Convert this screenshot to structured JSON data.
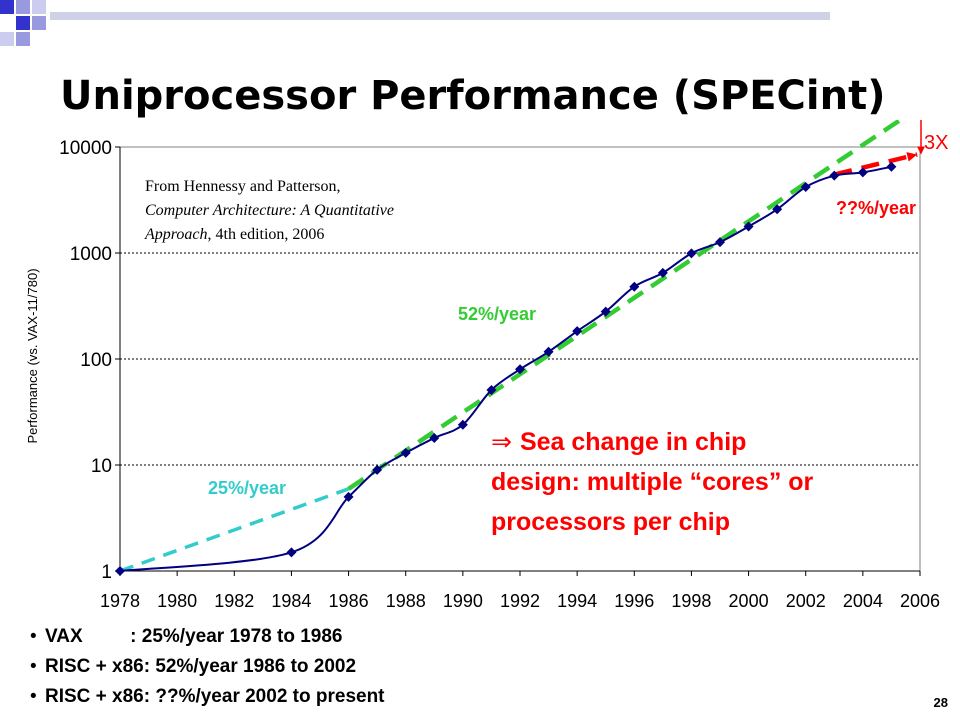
{
  "slide": {
    "title": "Uniprocessor Performance (SPECint)",
    "page_number": "28",
    "bullets": [
      "VAX         : 25%/year 1978 to 1986",
      "RISC + x86: 52%/year 1986 to 2002",
      "RISC + x86: ??%/year 2002 to present"
    ]
  },
  "colors": {
    "series": "#000080",
    "marker": "#000080",
    "trend_vax": "#33CCCC",
    "trend_risc": "#33CC33",
    "trend_recent": "#FF0000",
    "annotation_red": "#FF0000",
    "trend_label_green": "#33CC33",
    "trend_label_cyan": "#33CCCC",
    "title_squares": [
      "#3333CC",
      "#9999DD",
      "#CCCCEE"
    ]
  },
  "chart_data": {
    "type": "line",
    "title": "",
    "xlabel": "",
    "ylabel": "Performance (vs. VAX-11/780)",
    "y_scale": "log",
    "xlim": [
      1978,
      2006
    ],
    "ylim": [
      1,
      10000
    ],
    "x_ticks": [
      "1978",
      "1980",
      "1982",
      "1984",
      "1986",
      "1988",
      "1990",
      "1992",
      "1994",
      "1996",
      "1998",
      "2000",
      "2002",
      "2004",
      "2006"
    ],
    "y_ticks": [
      "1",
      "10",
      "100",
      "1000",
      "10000"
    ],
    "gridlines": "horizontal dotted at 10, 100, 1000",
    "series": [
      {
        "x": [
          1978,
          1984,
          1986,
          1987,
          1988,
          1989,
          1990,
          1991,
          1992,
          1993,
          1994,
          1995,
          1996,
          1997,
          1998,
          1999,
          2000,
          2001,
          2002,
          2003,
          2004,
          2005
        ],
        "y": [
          1,
          1.5,
          5,
          9,
          13,
          18,
          24,
          51,
          80,
          117,
          183,
          280,
          481,
          649,
          993,
          1267,
          1779,
          2584,
          4195,
          5364,
          5764,
          6505
        ]
      }
    ],
    "trend_lines": [
      {
        "label": "25%/year",
        "from": [
          1978,
          1
        ],
        "to": [
          1986,
          5.96
        ]
      },
      {
        "label": "52%/year",
        "from": [
          1986,
          5.96
        ],
        "to": [
          2005.9,
          23000
        ]
      },
      {
        "label": "??%/year",
        "from": [
          2003,
          5500
        ],
        "to": [
          2005.9,
          8500
        ]
      }
    ],
    "annotations": {
      "source_line1": "From Hennessy and Patterson,",
      "source_line2": "Computer Architecture:  A Quantitative",
      "source_line3_italic": "Approach",
      "source_line3_rest": ", 4th edition, 2006",
      "three_x": "3X",
      "sea_change_arrow": "⇒",
      "sea_change_line1": "Sea change in chip",
      "sea_change_line2": "design: multiple “cores” or",
      "sea_change_line3": "processors per chip"
    },
    "legend": "none"
  }
}
